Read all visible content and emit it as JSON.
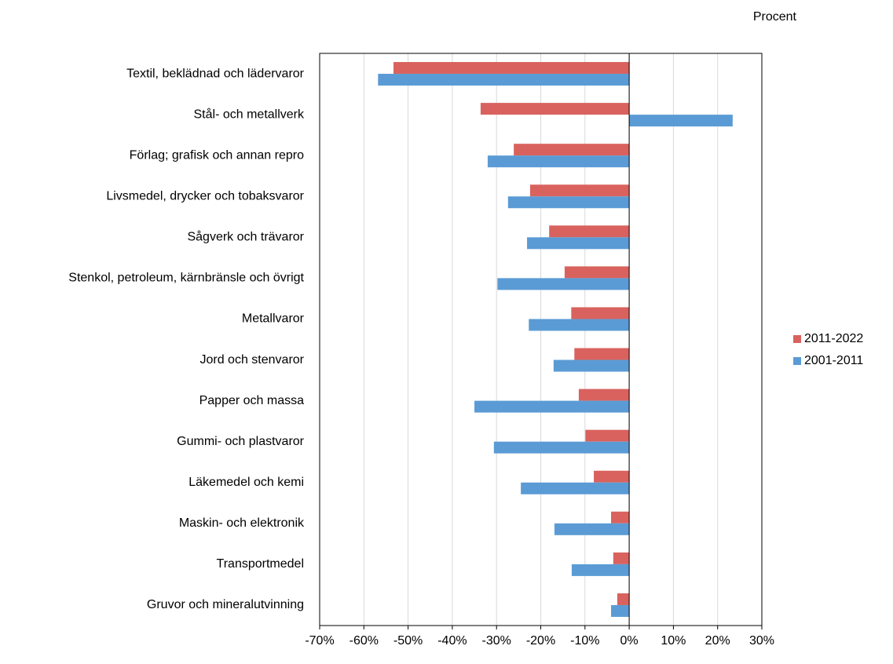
{
  "chart_data": {
    "type": "hbar",
    "unit_label": "Procent",
    "categories": [
      "Textil, beklädnad och lädervaror",
      "Stål- och metallverk",
      "Förlag; grafisk och annan repro",
      "Livsmedel, drycker och tobaksvaror",
      "Sågverk och trävaror",
      "Stenkol, petroleum, kärnbränsle och övrigt",
      "Metallvaror",
      "Jord och stenvaror",
      "Papper och massa",
      "Gummi- och plastvaror",
      "Läkemedel och kemi",
      "Maskin- och elektronik",
      "Transportmedel",
      "Gruvor och mineralutvinning"
    ],
    "series": [
      {
        "name": "2011-2022",
        "color": "#d9625e",
        "values": [
          -53.3,
          -33.6,
          -26.1,
          -22.4,
          -18.1,
          -14.6,
          -13.1,
          -12.4,
          -11.4,
          -9.9,
          -8.0,
          -4.1,
          -3.6,
          -2.7
        ]
      },
      {
        "name": "2001-2011",
        "color": "#5b9bd5",
        "values": [
          -56.8,
          23.4,
          -32.0,
          -27.4,
          -23.1,
          -29.8,
          -22.7,
          -17.1,
          -35.0,
          -30.6,
          -24.5,
          -16.9,
          -13.0,
          -4.1
        ]
      }
    ],
    "xlim": [
      -70,
      30
    ],
    "xticks": [
      {
        "value": -70,
        "label": "-70%"
      },
      {
        "value": -60,
        "label": "-60%"
      },
      {
        "value": -50,
        "label": "-50%"
      },
      {
        "value": -40,
        "label": "-40%"
      },
      {
        "value": -30,
        "label": "-30%"
      },
      {
        "value": -20,
        "label": "-20%"
      },
      {
        "value": -10,
        "label": "-10%"
      },
      {
        "value": 0,
        "label": "0%"
      },
      {
        "value": 10,
        "label": "10%"
      },
      {
        "value": 20,
        "label": "20%"
      },
      {
        "value": 30,
        "label": "30%"
      }
    ],
    "grid": true,
    "legend": "right"
  }
}
